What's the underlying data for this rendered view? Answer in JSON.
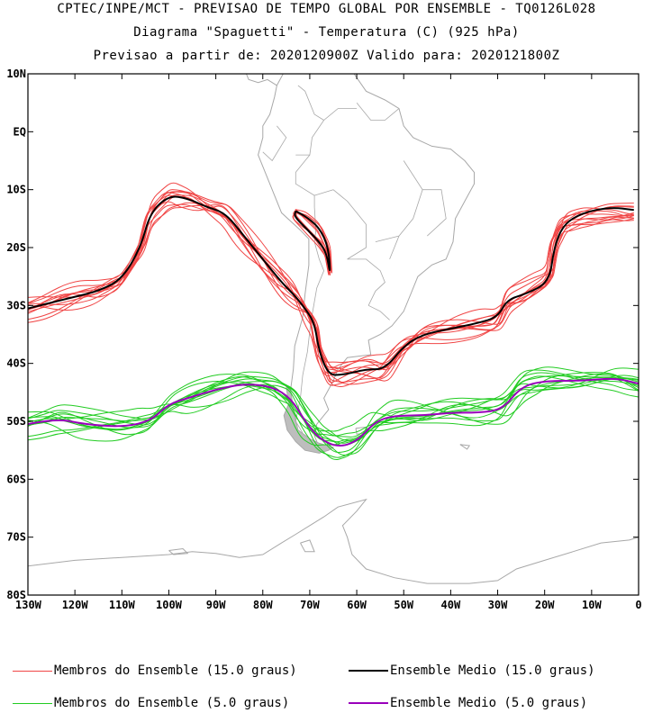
{
  "header": {
    "line1": "CPTEC/INPE/MCT - PREVISAO DE TEMPO GLOBAL POR ENSEMBLE - TQ0126L028",
    "line2": "Diagrama \"Spaguetti\" - Temperatura (C) (925 hPa)",
    "line3": "Previsao a partir de: 2020120900Z  Valido para: 2020121800Z"
  },
  "map": {
    "lon_range": [
      -130,
      0
    ],
    "lat_range": [
      -80,
      10
    ],
    "y_ticks": [
      {
        "lat": 10,
        "label": "10N"
      },
      {
        "lat": 0,
        "label": "EQ"
      },
      {
        "lat": -10,
        "label": "10S"
      },
      {
        "lat": -20,
        "label": "20S"
      },
      {
        "lat": -30,
        "label": "30S"
      },
      {
        "lat": -40,
        "label": "40S"
      },
      {
        "lat": -50,
        "label": "50S"
      },
      {
        "lat": -60,
        "label": "60S"
      },
      {
        "lat": -70,
        "label": "70S"
      },
      {
        "lat": -80,
        "label": "80S"
      }
    ],
    "x_ticks": [
      {
        "lon": -130,
        "label": "130W"
      },
      {
        "lon": -120,
        "label": "120W"
      },
      {
        "lon": -110,
        "label": "110W"
      },
      {
        "lon": -100,
        "label": "100W"
      },
      {
        "lon": -90,
        "label": "90W"
      },
      {
        "lon": -80,
        "label": "80W"
      },
      {
        "lon": -70,
        "label": "70W"
      },
      {
        "lon": -60,
        "label": "60W"
      },
      {
        "lon": -50,
        "label": "50W"
      },
      {
        "lon": -40,
        "label": "40W"
      },
      {
        "lon": -30,
        "label": "30W"
      },
      {
        "lon": -20,
        "label": "20W"
      },
      {
        "lon": -10,
        "label": "10W"
      },
      {
        "lon": 0,
        "label": "0"
      }
    ],
    "coast_color": "#a8a8a8"
  },
  "contour_15": {
    "member_color": "#f04545",
    "mean_color": "#000000",
    "mean_path": [
      [
        -130,
        -30.5
      ],
      [
        -125,
        -29.5
      ],
      [
        -120,
        -28.5
      ],
      [
        -115,
        -27.5
      ],
      [
        -110,
        -25.5
      ],
      [
        -106,
        -20
      ],
      [
        -104,
        -14
      ],
      [
        -100,
        -11
      ],
      [
        -96,
        -11.5
      ],
      [
        -92,
        -13
      ],
      [
        -88,
        -14
      ],
      [
        -84,
        -18
      ],
      [
        -80,
        -22
      ],
      [
        -76,
        -26
      ],
      [
        -73,
        -28.5
      ],
      [
        -71,
        -30.5
      ],
      [
        -69,
        -33
      ],
      [
        -68,
        -38
      ],
      [
        -66,
        -42
      ],
      [
        -63,
        -42
      ],
      [
        -58,
        -41
      ],
      [
        -54,
        -41
      ],
      [
        -50,
        -37
      ],
      [
        -46,
        -35
      ],
      [
        -40,
        -34
      ],
      [
        -34,
        -33
      ],
      [
        -30,
        -32
      ],
      [
        -28,
        -29
      ],
      [
        -24,
        -28
      ],
      [
        -19,
        -26
      ],
      [
        -18,
        -20
      ],
      [
        -16,
        -16
      ],
      [
        -12,
        -14
      ],
      [
        -6,
        -13
      ],
      [
        -1,
        -13.5
      ]
    ],
    "mean_closed": [
      [
        -73,
        -13.7
      ],
      [
        -71,
        -14.5
      ],
      [
        -68,
        -16.5
      ],
      [
        -66,
        -20
      ],
      [
        -65.6,
        -25
      ],
      [
        -66.4,
        -21
      ],
      [
        -68,
        -19
      ],
      [
        -71,
        -16.5
      ],
      [
        -73.3,
        -14.6
      ],
      [
        -73,
        -13.7
      ]
    ],
    "member_count": 12
  },
  "contour_5": {
    "member_color": "#22cc22",
    "mean_color": "#9900bb",
    "mean_path": [
      [
        -130,
        -50.5
      ],
      [
        -124,
        -49.5
      ],
      [
        -118,
        -50.5
      ],
      [
        -110,
        -51
      ],
      [
        -104,
        -50
      ],
      [
        -100,
        -47
      ],
      [
        -96,
        -46
      ],
      [
        -90,
        -44.5
      ],
      [
        -84,
        -43.5
      ],
      [
        -78,
        -44
      ],
      [
        -74,
        -46
      ],
      [
        -71,
        -50
      ],
      [
        -68,
        -53
      ],
      [
        -64,
        -54.5
      ],
      [
        -60,
        -53.5
      ],
      [
        -56,
        -50
      ],
      [
        -52,
        -49
      ],
      [
        -46,
        -49
      ],
      [
        -40,
        -48.5
      ],
      [
        -34,
        -48.5
      ],
      [
        -29,
        -48
      ],
      [
        -25,
        -44
      ],
      [
        -20,
        -43
      ],
      [
        -12,
        -43
      ],
      [
        -5,
        -42.5
      ],
      [
        0,
        -43.5
      ]
    ],
    "member_count": 12
  },
  "legend": {
    "member15": {
      "label": "Membros do Ensemble (15.0 graus)",
      "color": "#f04545"
    },
    "mean15": {
      "label": "Ensemble Medio (15.0 graus)",
      "color": "#000000"
    },
    "member5": {
      "label": "Membros do Ensemble (5.0 graus)",
      "color": "#22cc22"
    },
    "mean5": {
      "label": "Ensemble Medio (5.0 graus)",
      "color": "#9900bb"
    }
  }
}
